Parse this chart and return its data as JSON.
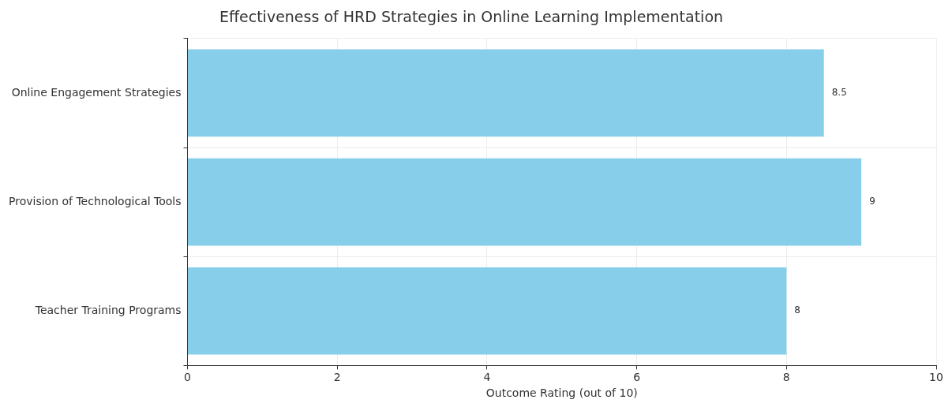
{
  "chart_data": {
    "type": "bar",
    "orientation": "horizontal",
    "title": "Effectiveness of HRD Strategies in Online Learning Implementation",
    "xlabel": "Outcome Rating (out of 10)",
    "categories": [
      "Online Engagement Strategies",
      "Provision of Technological Tools",
      "Teacher Training Programs"
    ],
    "values": [
      8.5,
      9,
      8
    ],
    "color": "#87ceeb",
    "xlim": [
      0,
      10
    ],
    "xticks": [
      0,
      2,
      4,
      6,
      8,
      10
    ],
    "grid": true,
    "data_labels": true,
    "legend": false
  }
}
